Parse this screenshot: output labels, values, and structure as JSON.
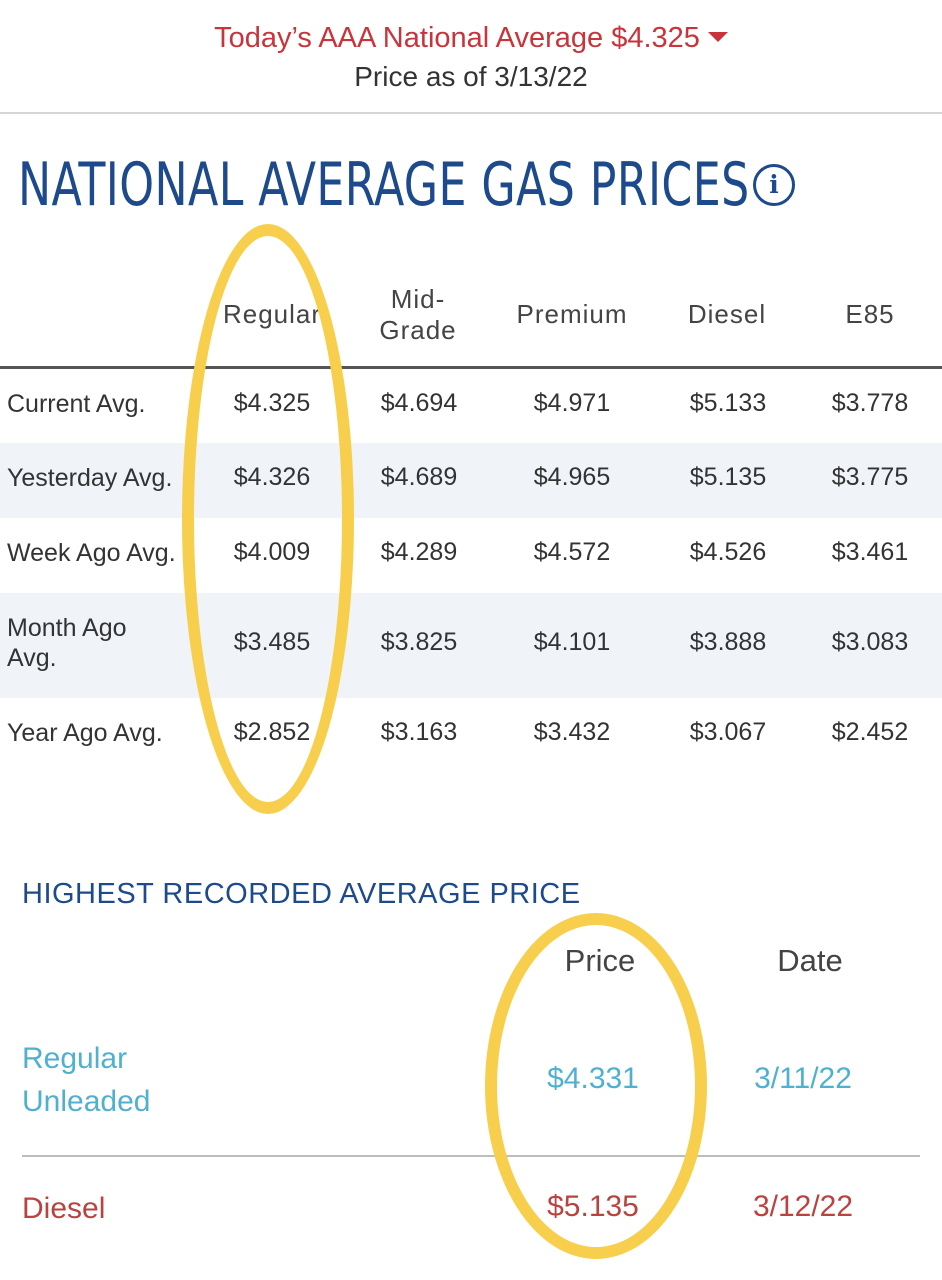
{
  "banner": {
    "national_average": "Today’s AAA National Average $4.325",
    "price_as_of": "Price as of 3/13/22",
    "trend_icon": "caret-down-icon"
  },
  "page_title": "NATIONAL AVERAGE GAS PRICES",
  "info_icon": "i",
  "price_table": {
    "columns": [
      "Regular",
      "Mid-Grade",
      "Premium",
      "Diesel",
      "E85"
    ],
    "rows": [
      {
        "label": "Current Avg.",
        "values": [
          "$4.325",
          "$4.694",
          "$4.971",
          "$5.133",
          "$3.778"
        ]
      },
      {
        "label": "Yesterday Avg.",
        "values": [
          "$4.326",
          "$4.689",
          "$4.965",
          "$5.135",
          "$3.775"
        ]
      },
      {
        "label": "Week Ago Avg.",
        "values": [
          "$4.009",
          "$4.289",
          "$4.572",
          "$4.526",
          "$3.461"
        ]
      },
      {
        "label": "Month Ago Avg.",
        "values": [
          "$3.485",
          "$3.825",
          "$4.101",
          "$3.888",
          "$3.083"
        ]
      },
      {
        "label": "Year Ago Avg.",
        "values": [
          "$2.852",
          "$3.163",
          "$3.432",
          "$3.067",
          "$2.452"
        ]
      }
    ]
  },
  "highest": {
    "title": "HIGHEST RECORDED AVERAGE PRICE",
    "columns": [
      "Price",
      "Date"
    ],
    "rows": [
      {
        "label": "Regular Unleaded",
        "price": "$4.331",
        "date": "3/11/22"
      },
      {
        "label": "Diesel",
        "price": "$5.135",
        "date": "3/12/22"
      }
    ]
  },
  "colors": {
    "accent_blue": "#1d4a8c",
    "banner_red": "#c9343b",
    "regular_blue": "#4fb0cf",
    "diesel_red": "#b8433f",
    "highlight_yellow": "#f7cf4d",
    "row_shade": "#f0f4f9"
  }
}
